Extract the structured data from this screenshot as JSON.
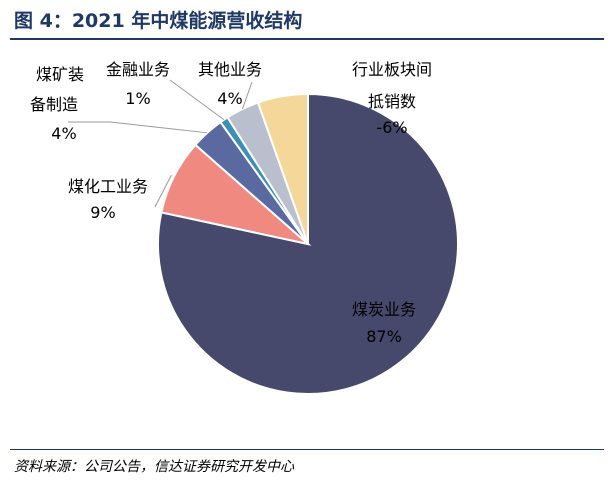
{
  "figure": {
    "title": "图 4：2021 年中煤能源营收结构",
    "source": "资料来源：公司公告，信达证券研究开发中心"
  },
  "chart_data": {
    "type": "pie",
    "title": "",
    "slices": [
      {
        "name": "煤炭业务",
        "value": 87,
        "label": "87%",
        "color": "#46496b"
      },
      {
        "name": "煤化工业务",
        "value": 9,
        "label": "9%",
        "color": "#f08a80"
      },
      {
        "name": "煤矿装备制造",
        "value": 4,
        "label": "4%",
        "color": "#5a6aa0"
      },
      {
        "name": "金融业务",
        "value": 1,
        "label": "1%",
        "color": "#3e8fb5"
      },
      {
        "name": "其他业务",
        "value": 4,
        "label": "4%",
        "color": "#b9bfcc"
      },
      {
        "name": "行业板块间抵销数",
        "value": -6,
        "label": "-6%",
        "color": "#f5d79a"
      }
    ],
    "legend": "none"
  }
}
